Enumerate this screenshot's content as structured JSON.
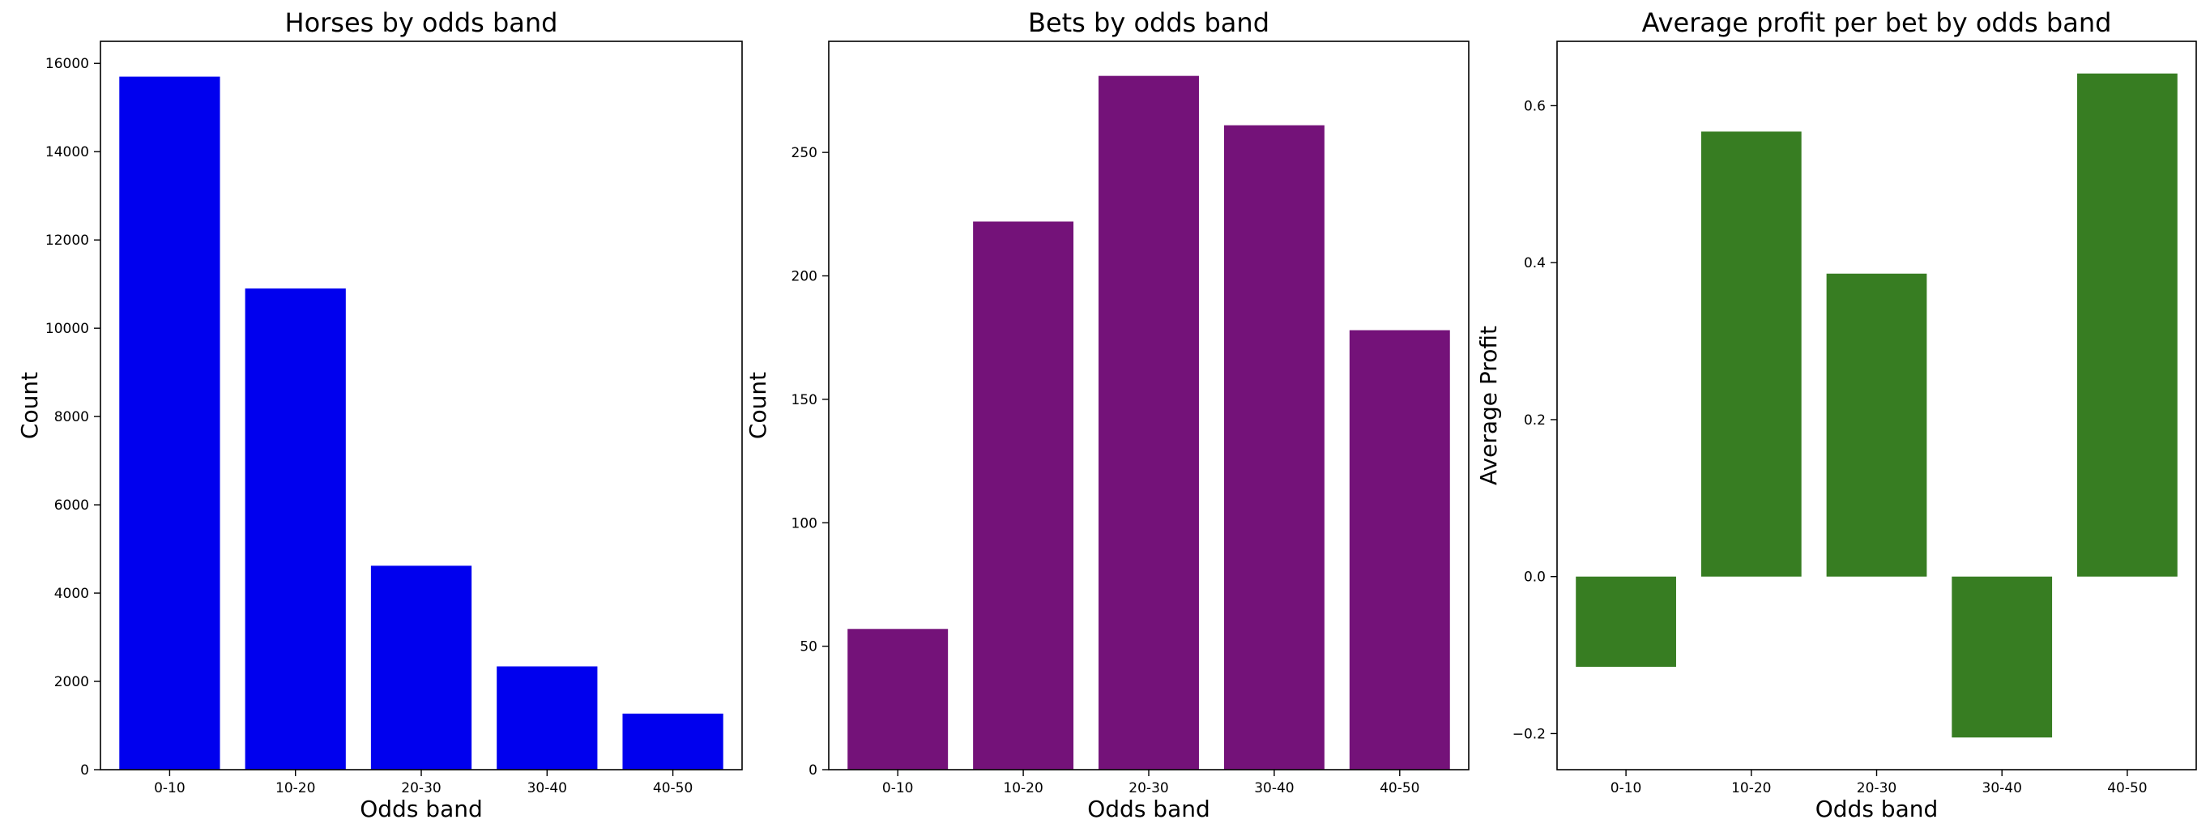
{
  "chart_data": [
    {
      "type": "bar",
      "title": "Horses by odds band",
      "xlabel": "Odds band",
      "ylabel": "Count",
      "categories": [
        "0-10",
        "10-20",
        "20-30",
        "30-40",
        "40-50"
      ],
      "values": [
        15700,
        10900,
        4620,
        2340,
        1270
      ],
      "ylim": [
        0,
        16500
      ],
      "yticks": [
        0,
        2000,
        4000,
        6000,
        8000,
        10000,
        12000,
        14000,
        16000
      ],
      "ytick_labels": [
        "0",
        "2000",
        "4000",
        "6000",
        "8000",
        "10000",
        "12000",
        "14000",
        "16000"
      ],
      "color": "#0000ee",
      "grid": false
    },
    {
      "type": "bar",
      "title": "Bets by odds band",
      "xlabel": "Odds band",
      "ylabel": "Count",
      "categories": [
        "0-10",
        "10-20",
        "20-30",
        "30-40",
        "40-50"
      ],
      "values": [
        57,
        222,
        281,
        261,
        178
      ],
      "ylim": [
        0,
        295
      ],
      "yticks": [
        0,
        50,
        100,
        150,
        200,
        250
      ],
      "ytick_labels": [
        "0",
        "50",
        "100",
        "150",
        "200",
        "250"
      ],
      "color": "#741279",
      "grid": false
    },
    {
      "type": "bar",
      "title": "Average profit per bet by odds band",
      "xlabel": "Odds band",
      "ylabel": "Average Profit",
      "categories": [
        "0-10",
        "10-20",
        "20-30",
        "30-40",
        "40-50"
      ],
      "values": [
        -0.115,
        0.567,
        0.386,
        -0.205,
        0.641
      ],
      "ylim": [
        -0.246,
        0.682
      ],
      "yticks": [
        -0.2,
        0.0,
        0.2,
        0.4,
        0.6
      ],
      "ytick_labels": [
        "−0.2",
        "0.0",
        "0.2",
        "0.4",
        "0.6"
      ],
      "color": "#377d22",
      "grid": false
    }
  ]
}
